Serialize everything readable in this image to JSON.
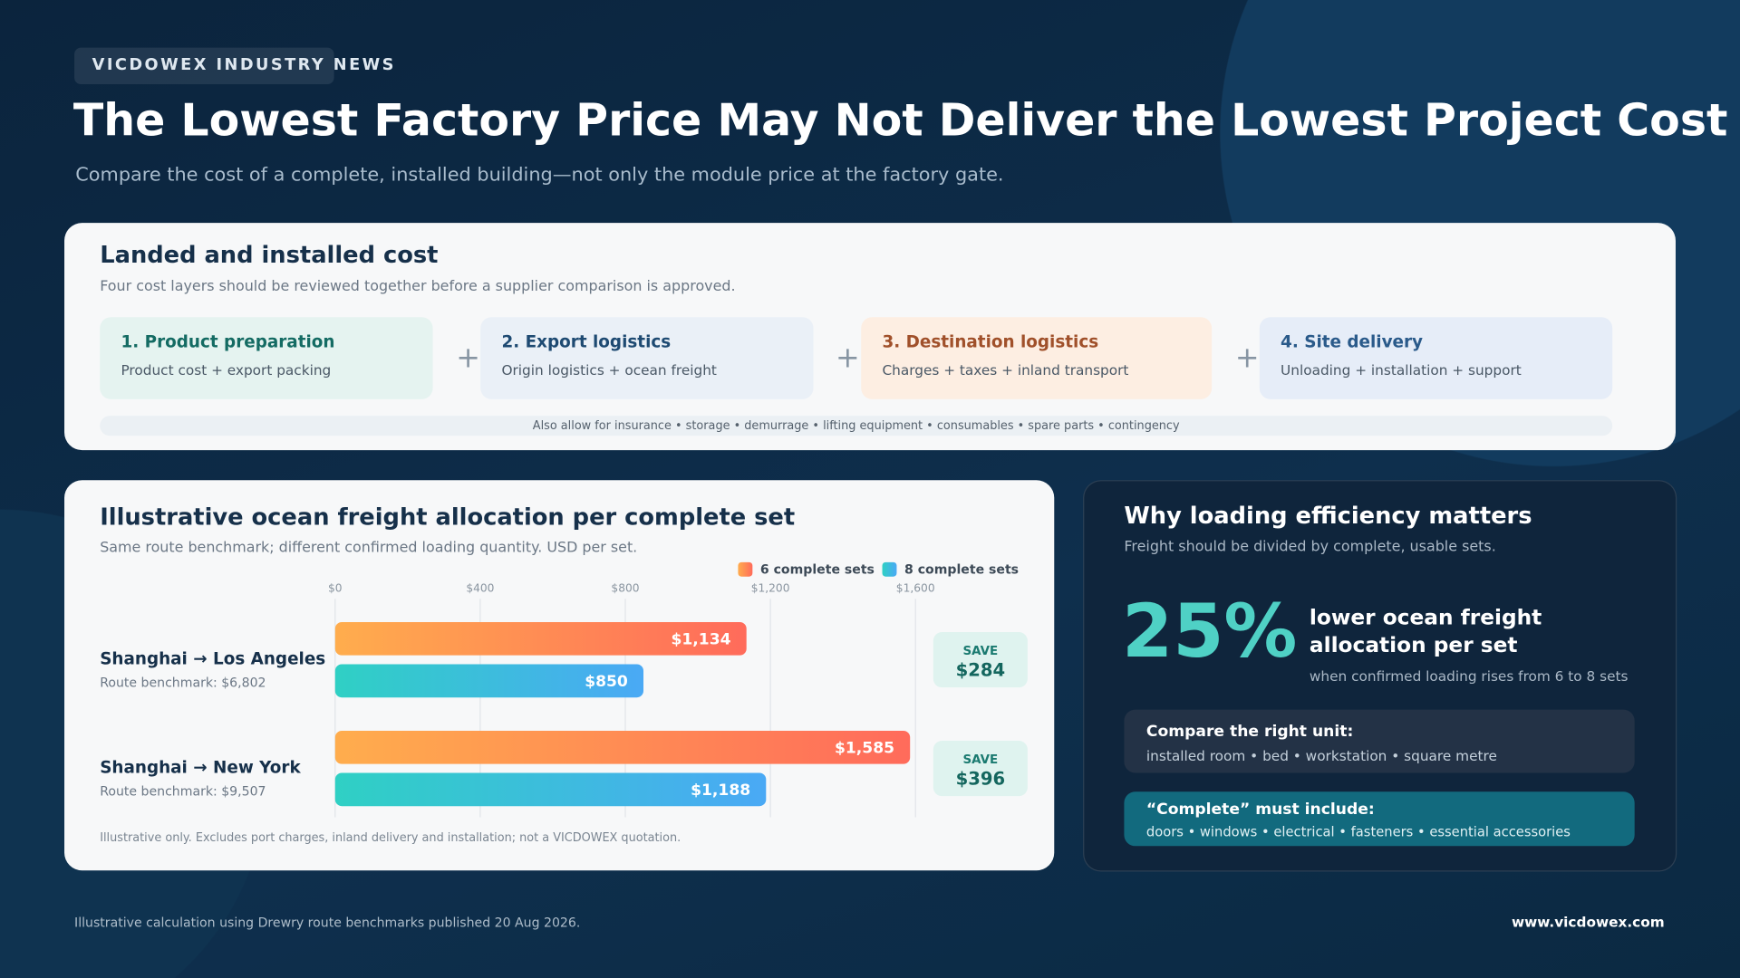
{
  "header": {
    "badge": "VICDOWEX INDUSTRY NEWS",
    "title": "The Lowest Factory Price May Not Deliver the Lowest Project Cost",
    "subtitle": "Compare the cost of a complete, installed building—not only the module price at the factory gate."
  },
  "cost_panel": {
    "title": "Landed and installed cost",
    "subtitle": "Four cost layers should be reviewed together before a supplier comparison is approved.",
    "steps": [
      {
        "title": "1. Product preparation",
        "detail": "Product cost + export packing"
      },
      {
        "title": "2. Export logistics",
        "detail": "Origin logistics + ocean freight"
      },
      {
        "title": "3. Destination logistics",
        "detail": "Charges + taxes + inland transport"
      },
      {
        "title": "4. Site delivery",
        "detail": "Unloading + installation + support"
      }
    ],
    "note": "Also allow for insurance • storage • demurrage • lifting equipment • consumables • spare parts • contingency"
  },
  "chart_data": {
    "type": "bar",
    "orientation": "horizontal",
    "title": "Illustrative ocean freight allocation per complete set",
    "subtitle": "Same route benchmark; different confirmed loading quantity. USD per set.",
    "categories": [
      "Shanghai → Los Angeles",
      "Shanghai → New York"
    ],
    "category_notes": [
      "Route benchmark: $6,802",
      "Route benchmark: $9,507"
    ],
    "series": [
      {
        "name": "6 complete sets",
        "colors": [
          "#ffad4d",
          "#ff6b5b"
        ],
        "values": [
          1134,
          1585
        ],
        "value_labels": [
          "$1,134",
          "$1,585"
        ]
      },
      {
        "name": "8 complete sets",
        "colors": [
          "#2fd0c4",
          "#4aa9f5"
        ],
        "values": [
          850,
          1188
        ],
        "value_labels": [
          "$850",
          "$1,188"
        ]
      }
    ],
    "xlim": [
      0,
      1600
    ],
    "xticks": [
      {
        "value": 0,
        "label": "$0"
      },
      {
        "value": 400,
        "label": "$400"
      },
      {
        "value": 800,
        "label": "$800"
      },
      {
        "value": 1200,
        "label": "$1,200"
      },
      {
        "value": 1600,
        "label": "$1,600"
      }
    ],
    "grid": true,
    "legend": "top-right",
    "save_title": "SAVE",
    "save_labels": [
      "$284",
      "$396"
    ],
    "footnote": "Illustrative only. Excludes port charges, inland delivery and installation; not a VICDOWEX quotation."
  },
  "insight_panel": {
    "title": "Why loading efficiency matters",
    "subtitle": "Freight should be divided by complete, usable sets.",
    "stat": "25%",
    "stat_label_lines": [
      "lower ocean freight",
      "allocation per set"
    ],
    "stat_note": "when confirmed loading rises from 6 to 8 sets",
    "boxes": [
      {
        "title": "Compare the right unit:",
        "detail": "installed room • bed • workstation • square metre"
      },
      {
        "title": "“Complete” must include:",
        "detail": "doors • windows • electrical • fasteners • essential accessories"
      }
    ]
  },
  "footer": {
    "source": "Illustrative calculation using Drewry route benchmarks published 20 Aug 2026.",
    "website": "www.vicdowex.com"
  }
}
